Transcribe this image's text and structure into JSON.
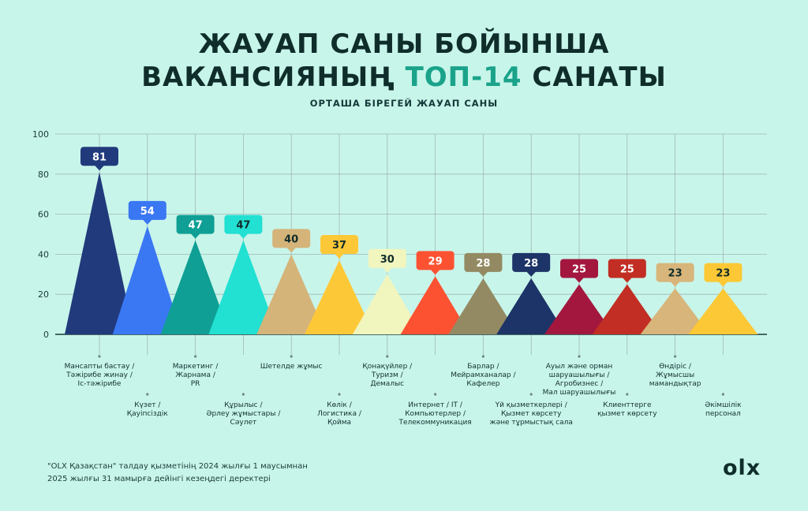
{
  "header": {
    "title_line1": "ЖАУАП САНЫ БОЙЫНША",
    "title_line2_prefix": "ВАКАНСИЯНЫҢ",
    "title_line2_accent": "ТОП-14",
    "title_line2_suffix": "САНАТЫ",
    "subtitle": "ОРТАША БІРЕГЕЙ ЖАУАП САНЫ"
  },
  "chart_data": {
    "type": "bar",
    "title": "",
    "ylabel": "ОРТАША БІРЕГЕЙ ЖАУАП САНЫ",
    "xlabel": "",
    "ylim": [
      0,
      100
    ],
    "yticks": [
      0,
      20,
      40,
      60,
      80,
      100
    ],
    "grid": true,
    "categories": [
      [
        "Мансапты бастау /",
        "Тәжірибе жинау /",
        "Іс-тәжірибе"
      ],
      [
        "Күзет /",
        "Қауіпсіздік"
      ],
      [
        "Маркетинг /",
        "Жарнама /",
        "PR"
      ],
      [
        "Құрылыс /",
        "Әрлеу жұмыстары /",
        "Сәулет"
      ],
      [
        "Шетелде жұмыс"
      ],
      [
        "Көлік /",
        "Логистика /",
        "Қойма"
      ],
      [
        "Қонақүйлер /",
        "Туризм /",
        "Демалыс"
      ],
      [
        "Интернет / IT /",
        "Компьютерлер /",
        "Телекоммуникация"
      ],
      [
        "Барлар /",
        "Мейрамханалар /",
        "Кафелер"
      ],
      [
        "Үй қызметкерлері /",
        "Қызмет көрсету",
        "және тұрмыстық сала"
      ],
      [
        "Ауыл және орман",
        "шаруашылығы /",
        "Агробизнес /",
        "Мал шаруашылығы"
      ],
      [
        "Клиенттерге",
        "қызмет көрсету"
      ],
      [
        "Өндіріс /",
        "Жұмысшы",
        "мамандықтар"
      ],
      [
        "Әкімшілік",
        "персонал"
      ]
    ],
    "values": [
      81,
      54,
      47,
      47,
      40,
      37,
      30,
      29,
      28,
      28,
      25,
      25,
      23,
      23
    ],
    "colors": [
      "#213a7c",
      "#3a77f3",
      "#0f9f94",
      "#22e0d2",
      "#d5b47a",
      "#fdc837",
      "#f1f5be",
      "#fc5232",
      "#938a63",
      "#1c3467",
      "#a3173f",
      "#c22e23",
      "#d8b57a",
      "#fcc835"
    ],
    "label_text_colors": [
      "#ffffff",
      "#ffffff",
      "#ffffff",
      "#0f2d2b",
      "#0f2d2b",
      "#0f2d2b",
      "#0f2d2b",
      "#ffffff",
      "#ffffff",
      "#ffffff",
      "#ffffff",
      "#ffffff",
      "#0f2d2b",
      "#0f2d2b"
    ]
  },
  "footnote": {
    "line1": "\"OLX Қазақстан\" талдау қызметінің 2024 жылғы 1 маусымнан",
    "line2": "2025 жылғы 31 мамырға дейінгі кезеңдегі деректері"
  },
  "logo": {
    "text": "olx"
  }
}
